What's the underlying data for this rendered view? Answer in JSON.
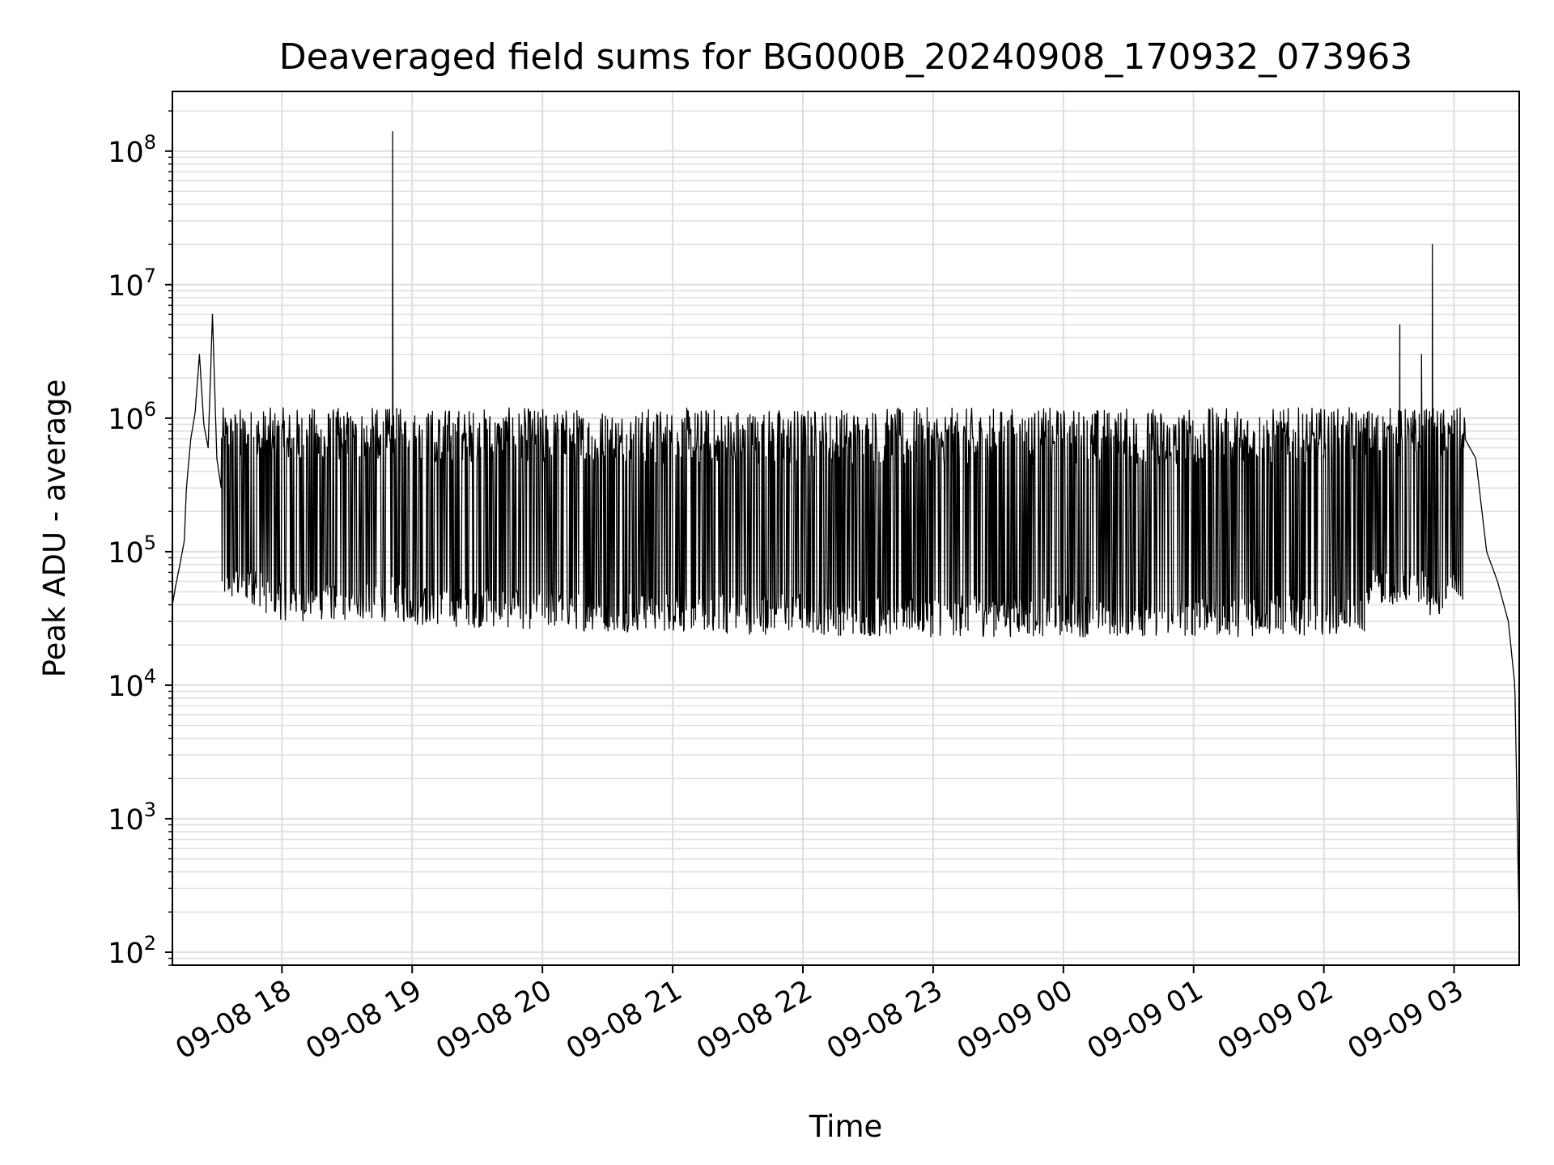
{
  "chart_data": {
    "type": "line",
    "title": "Deaveraged field sums for BG000B_20240908_170932_073963",
    "xlabel": "Time",
    "ylabel": "Peak ADU - average",
    "yscale": "log",
    "ylim": [
      80,
      280000000
    ],
    "xlim": [
      "2024-09-08 17:09:32",
      "2024-09-09 03:30:00"
    ],
    "grid": true,
    "line_color": "#000000",
    "grid_color": "#e0e0e0",
    "x_tick_labels": [
      "09-08 18",
      "09-08 19",
      "09-08 20",
      "09-08 21",
      "09-08 22",
      "09-08 23",
      "09-09 00",
      "09-09 01",
      "09-09 02",
      "09-09 03"
    ],
    "x_tick_values": [
      "2024-09-08 18:00",
      "2024-09-08 19:00",
      "2024-09-08 20:00",
      "2024-09-08 21:00",
      "2024-09-08 22:00",
      "2024-09-08 23:00",
      "2024-09-09 00:00",
      "2024-09-09 01:00",
      "2024-09-09 02:00",
      "2024-09-09 03:00"
    ],
    "y_tick_labels": [
      {
        "base": "10",
        "exp": "2",
        "value": 100
      },
      {
        "base": "10",
        "exp": "3",
        "value": 1000
      },
      {
        "base": "10",
        "exp": "4",
        "value": 10000
      },
      {
        "base": "10",
        "exp": "5",
        "value": 100000
      },
      {
        "base": "10",
        "exp": "6",
        "value": 1000000
      },
      {
        "base": "10",
        "exp": "7",
        "value": 10000000
      },
      {
        "base": "10",
        "exp": "8",
        "value": 100000000
      }
    ],
    "series": [
      {
        "x": [
          "2024-09-08 17:09:32",
          "2024-09-08 17:11",
          "2024-09-08 17:13",
          "2024-09-08 17:15",
          "2024-09-08 17:16",
          "2024-09-08 17:18",
          "2024-09-08 17:20",
          "2024-09-08 17:22",
          "2024-09-08 17:24",
          "2024-09-08 17:26",
          "2024-09-08 17:28",
          "2024-09-08 17:30",
          "2024-09-08 17:32",
          "2024-09-08 17:34",
          "2024-09-08 17:36",
          "2024-09-08 17:38",
          "2024-09-08 17:40",
          "2024-09-08 17:42",
          "2024-09-08 17:44",
          "2024-09-08 17:46",
          "2024-09-08 17:48",
          "2024-09-08 17:50",
          "2024-09-08 17:52",
          "2024-09-08 17:54",
          "2024-09-08 17:56",
          "2024-09-08 17:58",
          "2024-09-08 18:05",
          "2024-09-08 18:15",
          "2024-09-08 18:25",
          "2024-09-08 18:35",
          "2024-09-08 18:45",
          "2024-09-08 18:50",
          "2024-09-08 18:51",
          "2024-09-08 18:52",
          "2024-09-08 19:00",
          "2024-09-08 19:30",
          "2024-09-08 20:00",
          "2024-09-08 20:30",
          "2024-09-08 21:00",
          "2024-09-08 21:30",
          "2024-09-08 22:00",
          "2024-09-08 22:30",
          "2024-09-08 23:00",
          "2024-09-08 23:30",
          "2024-09-09 00:00",
          "2024-09-09 00:30",
          "2024-09-09 01:00",
          "2024-09-09 01:30",
          "2024-09-09 02:00",
          "2024-09-09 02:20",
          "2024-09-09 02:35",
          "2024-09-09 02:45",
          "2024-09-09 02:49",
          "2024-09-09 02:50",
          "2024-09-09 02:51",
          "2024-09-09 02:55",
          "2024-09-09 03:00",
          "2024-09-09 03:05",
          "2024-09-09 03:10",
          "2024-09-09 03:15",
          "2024-09-09 03:20",
          "2024-09-09 03:25",
          "2024-09-09 03:28",
          "2024-09-09 03:30"
        ],
        "y": [
          40000,
          55000,
          80000,
          120000,
          300000,
          700000,
          1100000,
          3000000,
          900000,
          600000,
          6000000,
          500000,
          300000,
          200000,
          150000,
          120000,
          90000,
          70000,
          55000,
          45000,
          40000,
          38000,
          35000,
          33000,
          32000,
          31000,
          30000,
          30000,
          30000,
          30000,
          30000,
          30000,
          140000000,
          30000,
          28000,
          27000,
          26000,
          25000,
          25000,
          24000,
          24000,
          23000,
          23000,
          23000,
          23000,
          23000,
          23000,
          23000,
          24000,
          25000,
          5000000,
          3000000,
          26000,
          20000000,
          28000,
          30000,
          800000,
          700000,
          500000,
          100000,
          60000,
          30000,
          10000,
          150
        ],
        "noise_band": {
          "low": 20000,
          "high": 1200000
        }
      }
    ]
  }
}
